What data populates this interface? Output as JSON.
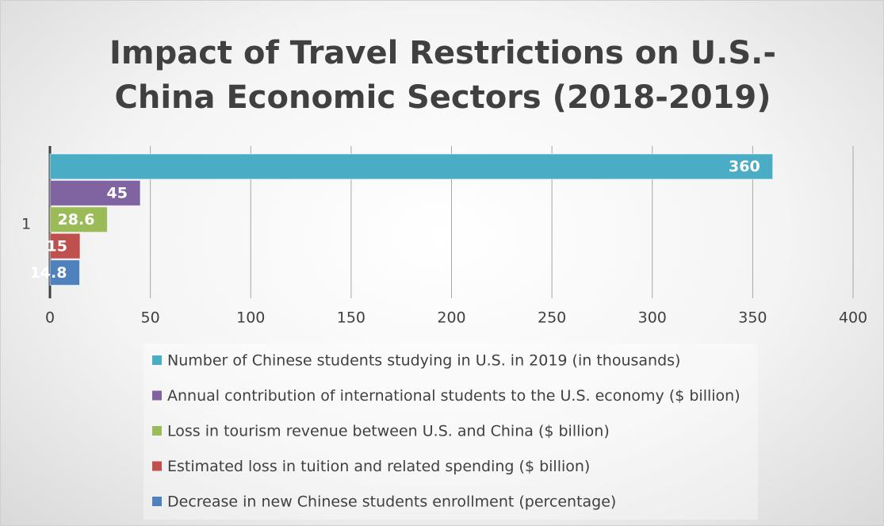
{
  "chart_data": {
    "type": "bar",
    "orientation": "horizontal",
    "title": "Impact of Travel Restrictions on U.S.-China Economic Sectors (2018-2019)",
    "categories": [
      "1"
    ],
    "series": [
      {
        "name": "Number of Chinese students studying in U.S. in 2019 (in thousands)",
        "color": "#4bacc6",
        "values": [
          360
        ]
      },
      {
        "name": "Annual contribution of international students to the U.S. economy ($ billion)",
        "color": "#8064a2",
        "values": [
          45
        ]
      },
      {
        "name": "Loss in tourism revenue between U.S. and China ($ billion)",
        "color": "#9bbb59",
        "values": [
          28.6
        ]
      },
      {
        "name": "Estimated loss in tuition and related spending ($ billion)",
        "color": "#c0504d",
        "values": [
          15
        ]
      },
      {
        "name": "Decrease in new Chinese students enrollment (percentage)",
        "color": "#4f81bd",
        "values": [
          14.8
        ]
      }
    ],
    "xlim": [
      0,
      400
    ],
    "xticks": [
      0,
      50,
      100,
      150,
      200,
      250,
      300,
      350,
      400
    ],
    "grid": true,
    "legend": "bottom"
  }
}
